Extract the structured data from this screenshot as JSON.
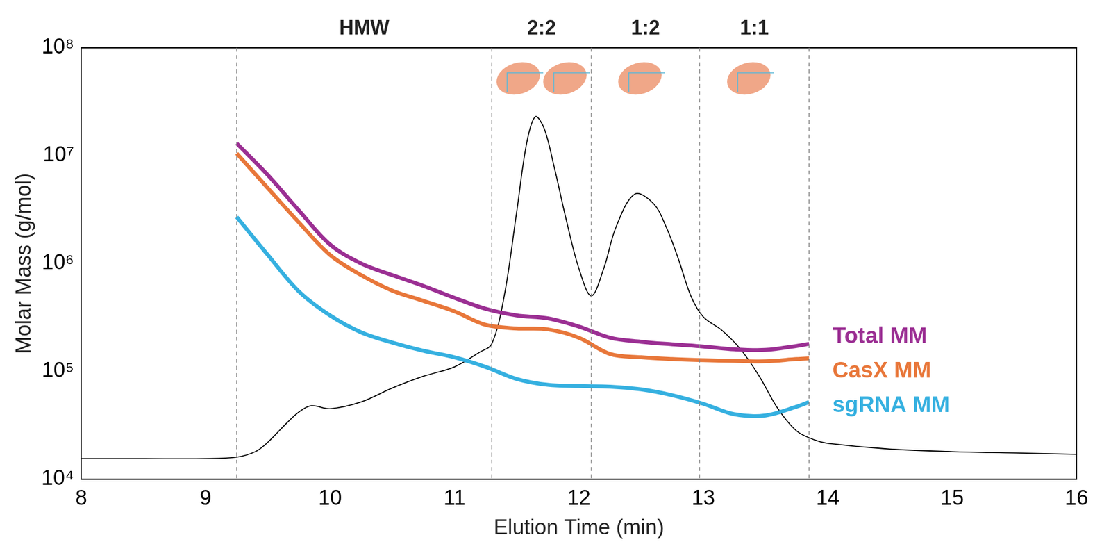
{
  "chart_data": {
    "type": "line",
    "x_label": "Elution Time (min)",
    "y_label": "Molar Mass (g/mol)",
    "log": "y",
    "grid": false,
    "legend": "right",
    "xlim": [
      8,
      16
    ],
    "xticks": [
      8,
      9,
      10,
      11,
      12,
      13,
      14,
      15,
      16
    ],
    "ylim": [
      10000,
      100000000
    ],
    "yticks": [
      {
        "value": 10000,
        "label": "10⁴"
      },
      {
        "value": 100000,
        "label": "10⁵"
      },
      {
        "value": 1000000,
        "label": "10⁶"
      },
      {
        "value": 10000000,
        "label": "10⁷"
      },
      {
        "value": 100000000,
        "label": "10⁸"
      }
    ],
    "regions": [
      {
        "label": "HMW",
        "start": 9.25,
        "end": 11.3
      },
      {
        "label": "2:2",
        "start": 11.3,
        "end": 12.1
      },
      {
        "label": "1:2",
        "start": 12.1,
        "end": 12.97
      },
      {
        "label": "1:1",
        "start": 12.97,
        "end": 13.85
      }
    ],
    "series": [
      {
        "name": "Total MM",
        "color": "#9b2f93",
        "x": [
          9.25,
          9.5,
          9.75,
          10,
          10.25,
          10.5,
          10.75,
          11,
          11.25,
          11.5,
          11.75,
          12,
          12.25,
          12.5,
          12.75,
          13,
          13.25,
          13.5,
          13.75,
          13.85
        ],
        "values": [
          13000000,
          6600000,
          3100000,
          1500000,
          1000000,
          780000,
          620000,
          480000,
          380000,
          330000,
          310000,
          260000,
          205000,
          188000,
          178000,
          170000,
          160000,
          158000,
          172000,
          180000
        ]
      },
      {
        "name": "CasX MM",
        "color": "#e8773a",
        "x": [
          9.25,
          9.5,
          9.75,
          10,
          10.25,
          10.5,
          10.75,
          11,
          11.25,
          11.5,
          11.75,
          12,
          12.25,
          12.5,
          12.75,
          13,
          13.25,
          13.5,
          13.75,
          13.85
        ],
        "values": [
          10500000,
          5000000,
          2400000,
          1200000,
          780000,
          560000,
          450000,
          360000,
          270000,
          250000,
          245000,
          205000,
          145000,
          135000,
          130000,
          127000,
          125000,
          124000,
          130000,
          132000
        ]
      },
      {
        "name": "sgRNA MM",
        "color": "#35b0e0",
        "x": [
          9.25,
          9.5,
          9.75,
          10,
          10.25,
          10.5,
          10.75,
          11,
          11.25,
          11.5,
          11.75,
          12,
          12.25,
          12.5,
          12.75,
          13,
          13.25,
          13.5,
          13.75,
          13.85
        ],
        "values": [
          2700000,
          1200000,
          550000,
          330000,
          230000,
          185000,
          155000,
          135000,
          110000,
          85000,
          75000,
          73000,
          72000,
          68000,
          60000,
          50000,
          40000,
          39000,
          47000,
          52000
        ]
      },
      {
        "color": "#000000",
        "x": [
          8,
          8.5,
          9,
          9.25,
          9.4,
          9.5,
          9.65,
          9.75,
          9.85,
          10,
          10.25,
          10.5,
          10.75,
          11,
          11.2,
          11.3,
          11.4,
          11.5,
          11.58,
          11.65,
          11.72,
          11.8,
          11.9,
          12,
          12.1,
          12.2,
          12.3,
          12.45,
          12.6,
          12.7,
          12.8,
          12.9,
          13,
          13.15,
          13.3,
          13.45,
          13.6,
          13.75,
          13.9,
          14,
          14.5,
          15,
          15.5,
          16
        ],
        "values": [
          15500,
          15500,
          15500,
          16000,
          18000,
          22000,
          33000,
          42000,
          48000,
          45000,
          52000,
          70000,
          90000,
          110000,
          150000,
          180000,
          500000,
          3000000,
          13000000,
          23000000,
          18000000,
          8000000,
          2500000,
          900000,
          500000,
          900000,
          2200000,
          4400000,
          3600000,
          2200000,
          1100000,
          500000,
          320000,
          240000,
          160000,
          90000,
          45000,
          28000,
          23000,
          21500,
          19000,
          18000,
          17500,
          17000
        ]
      }
    ]
  }
}
